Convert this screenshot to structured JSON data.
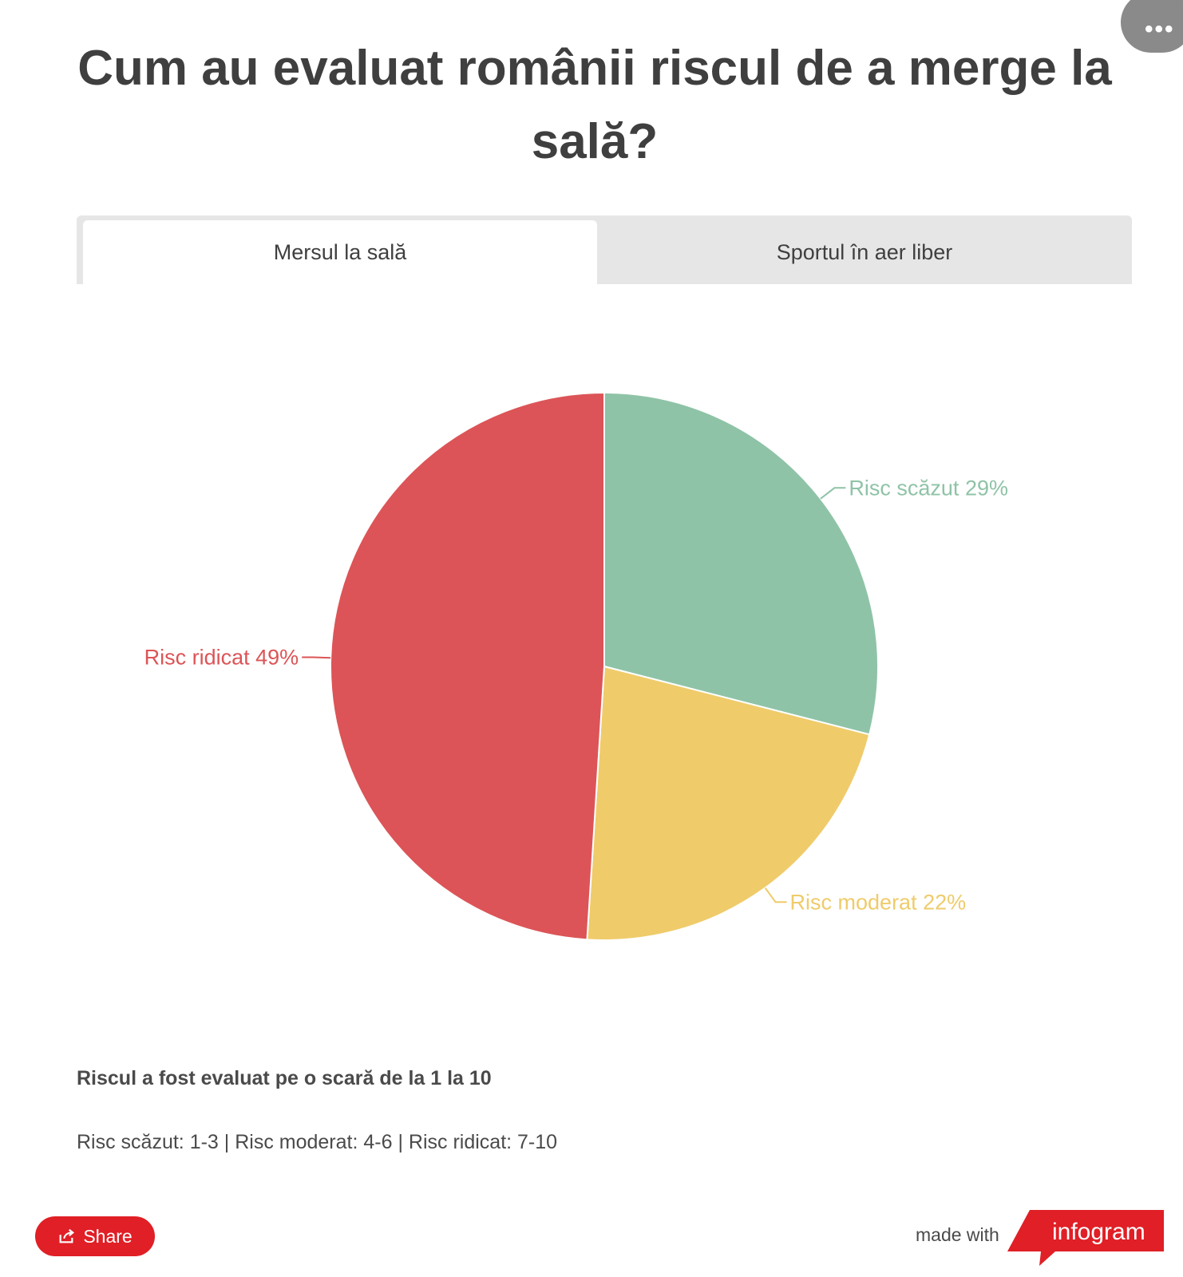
{
  "title": "Cum au evaluat românii riscul de a merge la sală?",
  "tabs": [
    {
      "label": "Mersul la sală",
      "active": true
    },
    {
      "label": "Sportul în aer liber",
      "active": false
    }
  ],
  "chart_data": {
    "type": "pie",
    "slices": [
      {
        "label": "Risc scăzut 29%",
        "value": 29,
        "color": "#8fc3a7"
      },
      {
        "label": "Risc moderat 22%",
        "value": 22,
        "color": "#efcb6a"
      },
      {
        "label": "Risc ridicat 49%",
        "value": 49,
        "color": "#dc5457"
      }
    ]
  },
  "notes": {
    "bold": "Riscul a fost evaluat pe o scară de la 1 la 10",
    "normal": "Risc scăzut: 1-3 | Risc moderat: 4-6 | Risc ridicat: 7-10"
  },
  "footer": {
    "share_label": "Share",
    "made_with": "made with",
    "brand": "infogram",
    "brand_color": "#e01f26"
  },
  "more_menu": "•••"
}
